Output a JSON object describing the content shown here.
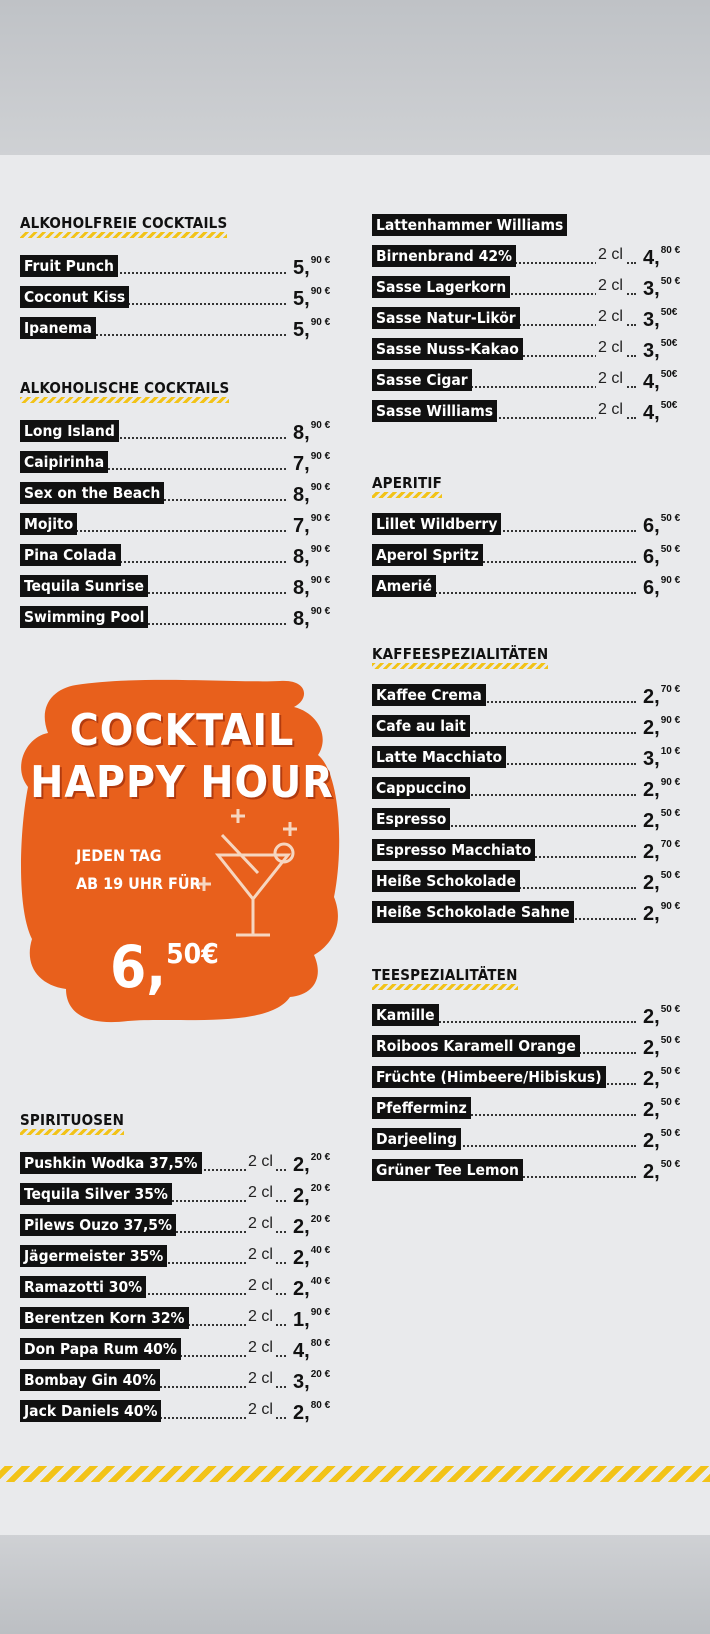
{
  "sections": {
    "alkoholfrei": {
      "title": "ALKOHOLFREIE COCKTAILS",
      "items": [
        {
          "name": "Fruit Punch",
          "price_main": "5,",
          "price_sup": "90 €"
        },
        {
          "name": "Coconut Kiss",
          "price_main": "5,",
          "price_sup": "90 €"
        },
        {
          "name": "Ipanema",
          "price_main": "5,",
          "price_sup": "90 €"
        }
      ]
    },
    "alkoholisch": {
      "title": "ALKOHOLISCHE COCKTAILS",
      "items": [
        {
          "name": "Long Island",
          "price_main": "8,",
          "price_sup": "90 €"
        },
        {
          "name": "Caipirinha",
          "price_main": "7,",
          "price_sup": "90 €"
        },
        {
          "name": "Sex on the Beach",
          "price_main": "8,",
          "price_sup": "90 €"
        },
        {
          "name": "Mojito",
          "price_main": "7,",
          "price_sup": "90 €"
        },
        {
          "name": "Pina Colada",
          "price_main": "8,",
          "price_sup": "90 €"
        },
        {
          "name": "Tequila Sunrise",
          "price_main": "8,",
          "price_sup": "90 €"
        },
        {
          "name": "Swimming Pool",
          "price_main": "8,",
          "price_sup": "90 €"
        }
      ]
    },
    "spirituosen": {
      "title": "SPIRITUOSEN",
      "items": [
        {
          "name": "Pushkin Wodka 37,5%",
          "size": "2 cl",
          "price_main": "2,",
          "price_sup": "20 €"
        },
        {
          "name": "Tequila Silver 35%",
          "size": "2 cl",
          "price_main": "2,",
          "price_sup": "20 €"
        },
        {
          "name": "Pilews Ouzo 37,5%",
          "size": "2 cl",
          "price_main": "2,",
          "price_sup": "20 €"
        },
        {
          "name": "Jägermeister 35%",
          "size": "2 cl",
          "price_main": "2,",
          "price_sup": "40 €"
        },
        {
          "name": "Ramazotti 30%",
          "size": "2 cl",
          "price_main": "2,",
          "price_sup": "40 €"
        },
        {
          "name": "Berentzen Korn 32%",
          "size": "2 cl",
          "price_main": "1,",
          "price_sup": "90 €"
        },
        {
          "name": "Don Papa Rum 40%",
          "size": "2 cl",
          "price_main": "4,",
          "price_sup": "80 €"
        },
        {
          "name": "Bombay Gin 40%",
          "size": "2 cl",
          "price_main": "3,",
          "price_sup": "20 €"
        },
        {
          "name": "Jack Daniels 40%",
          "size": "2 cl",
          "price_main": "2,",
          "price_sup": "80 €"
        }
      ]
    },
    "spirits_right": {
      "header_item": "Lattenhammer Williams",
      "items": [
        {
          "name": "Birnenbrand 42%",
          "size": "2 cl",
          "price_main": "4,",
          "price_sup": "80 €"
        },
        {
          "name": "Sasse Lagerkorn",
          "size": "2 cl",
          "price_main": "3,",
          "price_sup": "50 €"
        },
        {
          "name": "Sasse Natur-Likör",
          "size": "2 cl",
          "price_main": "3,",
          "price_sup": "50€"
        },
        {
          "name": "Sasse Nuss-Kakao",
          "size": "2 cl",
          "price_main": "3,",
          "price_sup": "50€"
        },
        {
          "name": "Sasse Cigar",
          "size": "2 cl",
          "price_main": "4,",
          "price_sup": "50€"
        },
        {
          "name": "Sasse Williams",
          "size": "2 cl",
          "price_main": "4,",
          "price_sup": "50€"
        }
      ]
    },
    "aperitif": {
      "title": "APERITIF",
      "items": [
        {
          "name": "Lillet Wildberry",
          "price_main": "6,",
          "price_sup": "50 €"
        },
        {
          "name": "Aperol Spritz",
          "price_main": "6,",
          "price_sup": "50 €"
        },
        {
          "name": "Amerié",
          "price_main": "6,",
          "price_sup": "90 €"
        }
      ]
    },
    "kaffee": {
      "title": "KAFFEESPEZIALITÄTEN",
      "items": [
        {
          "name": "Kaffee Crema",
          "price_main": "2,",
          "price_sup": "70 €"
        },
        {
          "name": "Cafe au lait",
          "price_main": "2,",
          "price_sup": "90 €"
        },
        {
          "name": "Latte Macchiato",
          "price_main": "3,",
          "price_sup": "10 €"
        },
        {
          "name": "Cappuccino",
          "price_main": "2,",
          "price_sup": "90 €"
        },
        {
          "name": "Espresso",
          "price_main": "2,",
          "price_sup": "50 €"
        },
        {
          "name": "Espresso Macchiato",
          "price_main": "2,",
          "price_sup": "70 €"
        },
        {
          "name": "Heiße Schokolade",
          "price_main": "2,",
          "price_sup": "50 €"
        },
        {
          "name": "Heiße Schokolade Sahne",
          "price_main": "2,",
          "price_sup": "90 €"
        }
      ]
    },
    "tee": {
      "title": "TEESPEZIALITÄTEN",
      "items": [
        {
          "name": "Kamille",
          "price_main": "2,",
          "price_sup": "50 €"
        },
        {
          "name": "Roiboos Karamell Orange",
          "price_main": "2,",
          "price_sup": "50 €"
        },
        {
          "name": "Früchte (Himbeere/Hibiskus)",
          "price_main": "2,",
          "price_sup": "50 €"
        },
        {
          "name": "Pfefferminz",
          "price_main": "2,",
          "price_sup": "50 €"
        },
        {
          "name": "Darjeeling",
          "price_main": "2,",
          "price_sup": "50 €"
        },
        {
          "name": "Grüner Tee Lemon",
          "price_main": "2,",
          "price_sup": "50 €"
        }
      ]
    }
  },
  "happy_hour": {
    "title_line1": "COCKTAIL",
    "title_line2": "HAPPY HOUR",
    "sub_line1": "JEDEN TAG",
    "sub_line2": "AB 19 UHR FÜR",
    "price_main": "6,",
    "price_sup": "50€",
    "icon": "cocktail-glass-icon"
  },
  "colors": {
    "accent_orange": "#e8601c",
    "stripe_yellow": "#f2c318",
    "label_black": "#111111"
  }
}
